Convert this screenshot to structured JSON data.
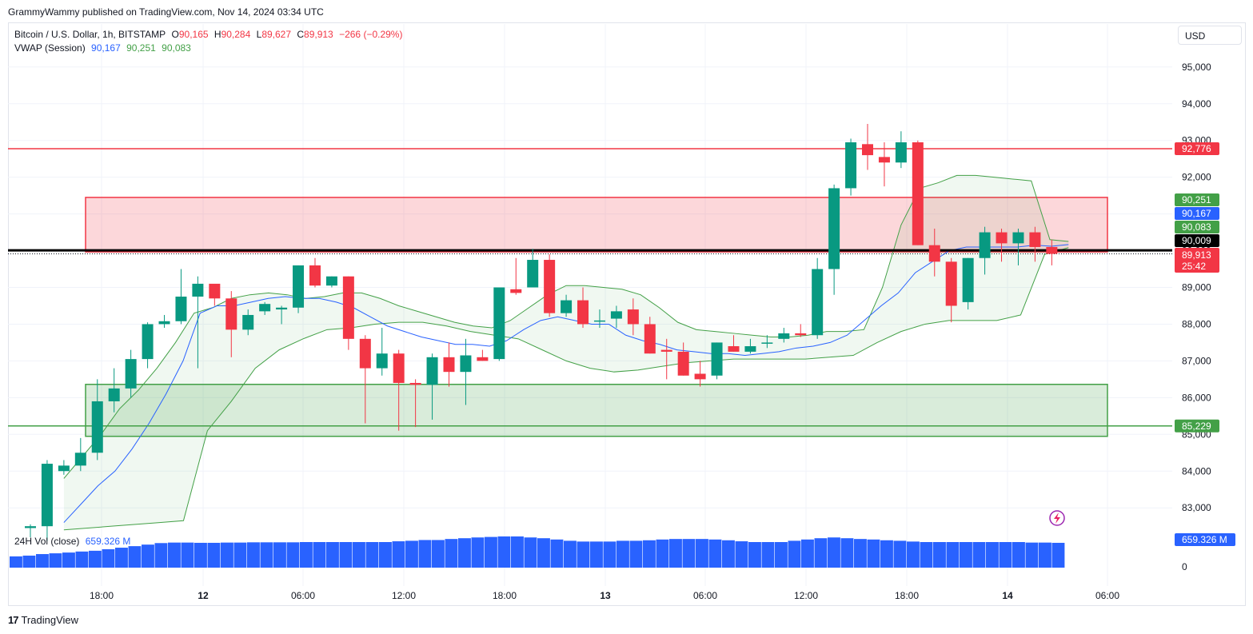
{
  "header": {
    "published": "GrammyWammy published on TradingView.com, Nov 14, 2024 03:34 UTC"
  },
  "symbol": {
    "name": "Bitcoin / U.S. Dollar, 1h, BITSTAMP",
    "o_label": "O",
    "o": "90,165",
    "h_label": "H",
    "h": "90,284",
    "l_label": "L",
    "l": "89,627",
    "c_label": "C",
    "c": "89,913",
    "change": "−266 (−0.29%)"
  },
  "vwap": {
    "label": "VWAP (Session)",
    "v1": "90,167",
    "v2": "90,251",
    "v3": "90,083"
  },
  "volume": {
    "label": "24H Vol (close)",
    "value": "659.326 M",
    "zero": "0"
  },
  "currency": "USD",
  "brand": "TradingView",
  "colors": {
    "up": "#089981",
    "down": "#f23645",
    "vwap": "#2962ff",
    "band": "#43a047",
    "volume": "#2962ff"
  },
  "price_labels": {
    "red_line": "92,776",
    "band_upper": "90,251",
    "vwap": "90,167",
    "band_lower": "90,083",
    "black_line": "90,009",
    "last": "89,913",
    "countdown": "25:42",
    "green_line": "85,229",
    "volume": "659.326 M"
  },
  "chart_data": {
    "type": "candlestick",
    "y_axis": {
      "ticks": [
        83000,
        84000,
        85000,
        86000,
        87000,
        88000,
        89000,
        90000,
        91000,
        92000,
        93000,
        94000,
        95000
      ],
      "tick_labels": [
        "83,000",
        "84,000",
        "85,000",
        "86,000",
        "87,000",
        "88,000",
        "89,000",
        "90,000",
        "91,000",
        "92,000",
        "93,000",
        "94,000",
        "95,000"
      ]
    },
    "x_axis": {
      "ticks": [
        {
          "index": 5,
          "label": "18:00"
        },
        {
          "index": 11,
          "label": "12"
        },
        {
          "index": 17,
          "label": "06:00"
        },
        {
          "index": 23,
          "label": "12:00"
        },
        {
          "index": 29,
          "label": "18:00"
        },
        {
          "index": 35,
          "label": "13"
        },
        {
          "index": 41,
          "label": "06:00"
        },
        {
          "index": 47,
          "label": "12:00"
        },
        {
          "index": 53,
          "label": "18:00"
        },
        {
          "index": 59,
          "label": "14"
        },
        {
          "index": 65,
          "label": "06:00"
        }
      ]
    },
    "candles": [
      [
        82450,
        82550,
        82200,
        82500
      ],
      [
        82500,
        84300,
        82100,
        84200
      ],
      [
        84000,
        84300,
        83900,
        84150
      ],
      [
        84150,
        84900,
        84000,
        84500
      ],
      [
        84500,
        86500,
        84300,
        85900
      ],
      [
        85900,
        86800,
        85600,
        86250
      ],
      [
        86250,
        87300,
        86000,
        87050
      ],
      [
        87050,
        88050,
        86800,
        88000
      ],
      [
        88000,
        88250,
        87900,
        88080
      ],
      [
        88080,
        89500,
        88000,
        88750
      ],
      [
        88750,
        89300,
        86800,
        89100
      ],
      [
        89100,
        89000,
        88500,
        88700
      ],
      [
        88700,
        88900,
        87100,
        87850
      ],
      [
        87850,
        88400,
        87700,
        88250
      ],
      [
        88350,
        88600,
        88250,
        88550
      ],
      [
        88400,
        88500,
        88000,
        88450
      ],
      [
        88450,
        89600,
        88300,
        89600
      ],
      [
        89600,
        89800,
        89000,
        89050
      ],
      [
        89050,
        89300,
        89000,
        89300
      ],
      [
        89300,
        89300,
        87300,
        87600
      ],
      [
        87600,
        87700,
        85300,
        86800
      ],
      [
        86800,
        87900,
        86600,
        87200
      ],
      [
        87200,
        87300,
        85100,
        86400
      ],
      [
        86400,
        86500,
        85200,
        86350
      ],
      [
        86350,
        87200,
        85400,
        87100
      ],
      [
        87100,
        87500,
        86300,
        86700
      ],
      [
        86700,
        87600,
        85800,
        87150
      ],
      [
        87100,
        87300,
        87000,
        87000
      ],
      [
        87050,
        89000,
        87000,
        89000
      ],
      [
        88950,
        89800,
        88800,
        88850
      ],
      [
        89000,
        90050,
        89000,
        89750
      ],
      [
        89750,
        89900,
        88200,
        88300
      ],
      [
        88300,
        88800,
        88200,
        88650
      ],
      [
        88650,
        89000,
        87900,
        88000
      ],
      [
        88100,
        88400,
        87900,
        88100
      ],
      [
        88150,
        88500,
        87900,
        88350
      ],
      [
        88400,
        88700,
        87700,
        88000
      ],
      [
        88000,
        88200,
        87200,
        87200
      ],
      [
        87300,
        87600,
        86500,
        87250
      ],
      [
        87250,
        87500,
        86600,
        86600
      ],
      [
        86650,
        87000,
        86300,
        86500
      ],
      [
        86600,
        87500,
        86500,
        87500
      ],
      [
        87400,
        87700,
        87250,
        87250
      ],
      [
        87250,
        87600,
        87200,
        87400
      ],
      [
        87500,
        87700,
        87350,
        87500
      ],
      [
        87600,
        87900,
        87500,
        87750
      ],
      [
        87750,
        88000,
        87650,
        87700
      ],
      [
        87700,
        89800,
        87600,
        89500
      ],
      [
        89500,
        91800,
        88800,
        91700
      ],
      [
        91700,
        93050,
        91500,
        92950
      ],
      [
        92900,
        93450,
        92200,
        92600
      ],
      [
        92550,
        92950,
        91750,
        92400
      ],
      [
        92400,
        93250,
        92250,
        92950
      ],
      [
        92950,
        93000,
        90150,
        90150
      ],
      [
        90150,
        90600,
        89300,
        89700
      ],
      [
        89700,
        89800,
        88050,
        88500
      ],
      [
        88600,
        89800,
        88400,
        89800
      ],
      [
        89800,
        90650,
        89350,
        90500
      ],
      [
        90500,
        90600,
        89700,
        90200
      ],
      [
        90200,
        90600,
        89600,
        90500
      ],
      [
        90500,
        90650,
        89700,
        90100
      ],
      [
        90100,
        90300,
        89600,
        89913
      ]
    ],
    "vwap": [
      82600,
      83100,
      83600,
      84000,
      84600,
      85300,
      86100,
      87000,
      88300,
      88500,
      88500,
      88600,
      88700,
      88750,
      88700,
      88700,
      88600,
      88450,
      88200,
      87950,
      87800,
      87650,
      87550,
      87450,
      87450,
      87400,
      87550,
      87850,
      88100,
      88200,
      88100,
      88000,
      88000,
      87700,
      87550,
      87450,
      87300,
      87250,
      87200,
      87200,
      87150,
      87200,
      87250,
      87350,
      87400,
      87500,
      87700,
      88100,
      88500,
      88850,
      89400,
      89700,
      90000,
      90100,
      90100,
      90100,
      90100,
      90150,
      90120,
      90167
    ],
    "band_upper": [
      83800,
      84400,
      85000,
      85700,
      86200,
      86800,
      87500,
      88300,
      88450,
      88700,
      88800,
      88850,
      88800,
      88700,
      88750,
      88850,
      88850,
      88700,
      88500,
      88350,
      88200,
      88050,
      87950,
      87900,
      88100,
      88450,
      88800,
      89050,
      89050,
      89000,
      88950,
      88800,
      88450,
      88050,
      87850,
      87800,
      87750,
      87700,
      87650,
      87650,
      87700,
      87800,
      87800,
      87850,
      89000,
      90700,
      91700,
      91850,
      92050,
      92050,
      92000,
      91950,
      91900,
      90300,
      90251
    ],
    "band_lower": [
      82400,
      82450,
      82500,
      82550,
      82600,
      82650,
      85100,
      85900,
      86800,
      87300,
      87600,
      87850,
      87900,
      88000,
      88050,
      88050,
      87950,
      87800,
      87700,
      87600,
      87300,
      87000,
      86800,
      86700,
      86750,
      86850,
      86950,
      87000,
      87050,
      87050,
      87050,
      87050,
      87100,
      87150,
      87500,
      87800,
      88000,
      88100,
      88100,
      88100,
      88250,
      89900,
      90083
    ],
    "levels": {
      "red_line": 92776,
      "black_line": 90009,
      "green_line": 85229,
      "last_dotted": 89913
    },
    "zones": [
      {
        "color": "red",
        "from": 89966,
        "to": 91450
      },
      {
        "color": "green",
        "from": 84947,
        "to": 86361
      }
    ],
    "volume_24h": [
      0.44,
      0.47,
      0.53,
      0.56,
      0.59,
      0.63,
      0.66,
      0.72,
      0.78,
      0.84,
      0.9,
      0.96,
      0.98,
      0.98,
      0.97,
      0.97,
      0.98,
      0.98,
      0.99,
      0.99,
      0.99,
      0.99,
      1.0,
      1.0,
      1.0,
      1.0,
      1.0,
      1.0,
      1.0,
      1.03,
      1.05,
      1.08,
      1.08,
      1.12,
      1.15,
      1.18,
      1.2,
      1.22,
      1.22,
      1.18,
      1.15,
      1.1,
      1.05,
      1.02,
      1.02,
      1.02,
      1.05,
      1.05,
      1.07,
      1.1,
      1.12,
      1.12,
      1.12,
      1.1,
      1.07,
      1.03,
      1.0,
      1.0,
      1.0,
      1.05,
      1.1,
      1.15,
      1.18,
      1.15,
      1.12,
      1.1,
      1.07,
      1.05,
      1.02,
      1.0,
      1.0,
      1.0,
      1.0,
      1.0,
      1.0,
      1.0,
      1.0,
      0.98,
      0.98,
      0.97
    ],
    "legend": "top-left",
    "grid": true
  }
}
